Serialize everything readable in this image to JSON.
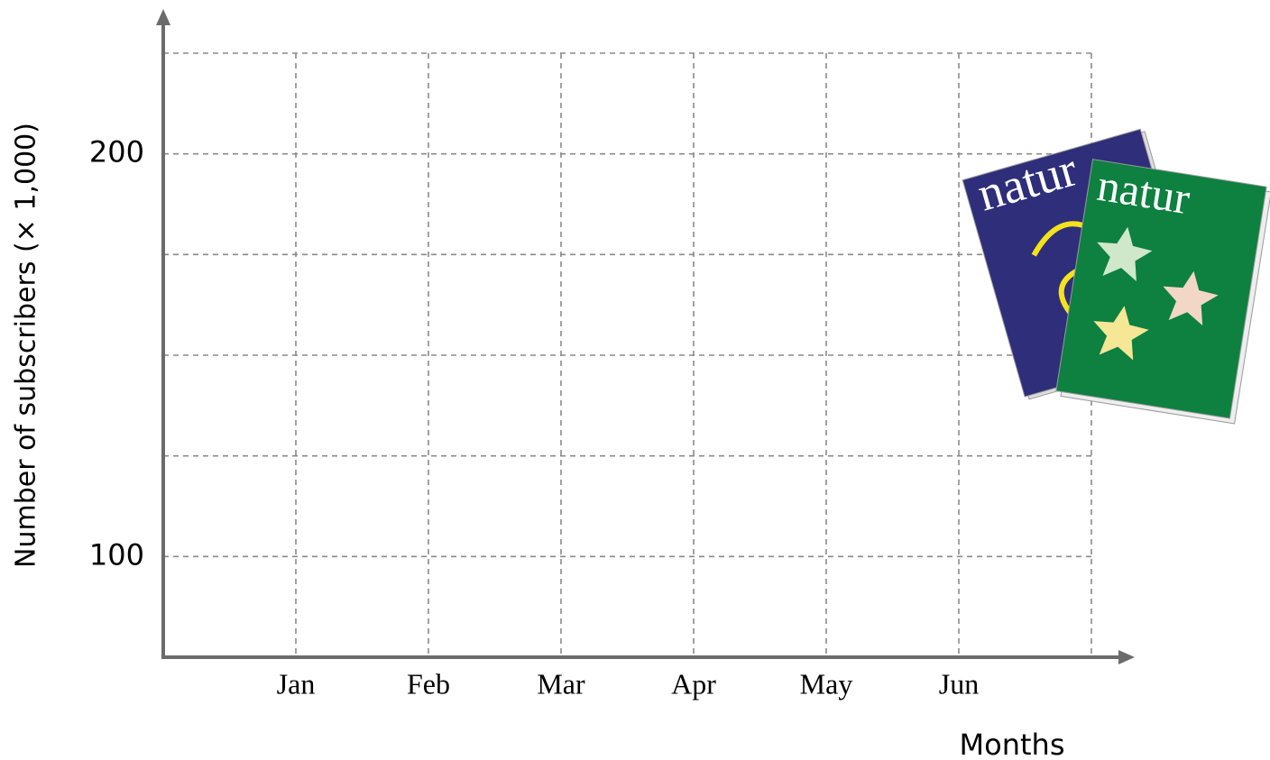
{
  "chart_data": {
    "type": "line",
    "y_label": "Number of subscribers (× 1,000)",
    "x_label": "Months",
    "categories": [
      "Jan",
      "Feb",
      "Mar",
      "Apr",
      "May",
      "Jun",
      null
    ],
    "ylim": [
      75,
      225
    ],
    "yticks": [
      100,
      200
    ],
    "ygrid": [
      100,
      125,
      150,
      175,
      200,
      225
    ],
    "grid": true,
    "series": [],
    "illustration_texts": [
      "natur",
      "natur"
    ]
  }
}
